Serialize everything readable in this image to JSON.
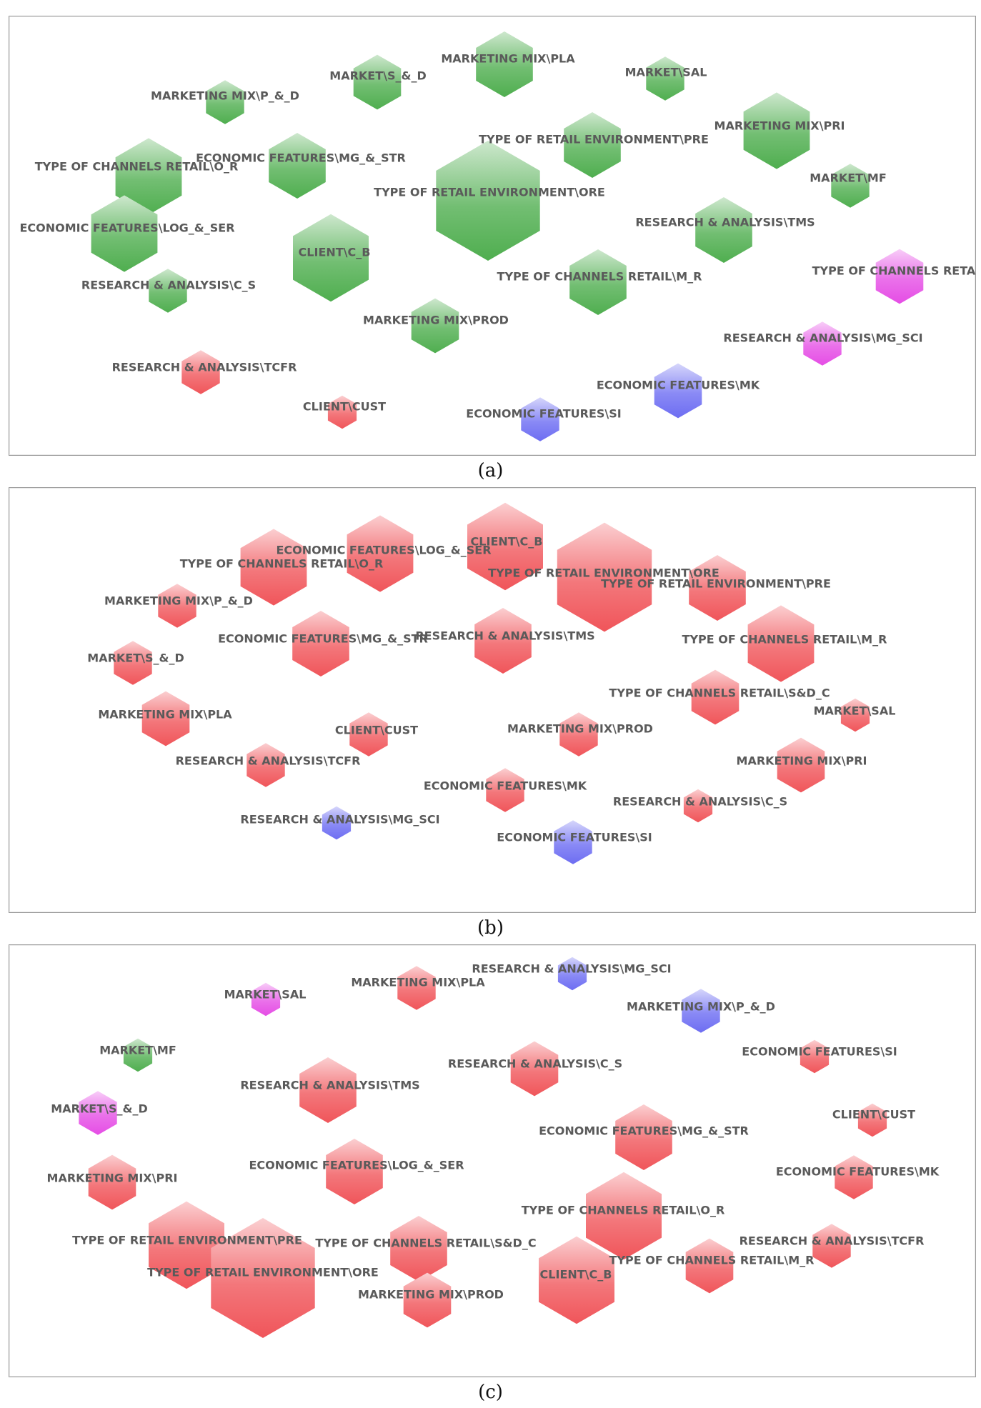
{
  "captions": [
    "(a)",
    "(b)",
    "(c)"
  ],
  "colors": {
    "green": "#4fae4f",
    "red": "#f0555a",
    "blue": "#6d6df2",
    "magenta": "#e54de5",
    "label": "#5a5a5a"
  },
  "panels": [
    {
      "nodes": [
        {
          "label": "MARKETING MIX\\PLA",
          "color": "green",
          "size": 5
        },
        {
          "label": "MARKET\\S_&_D",
          "color": "green",
          "size": 4
        },
        {
          "label": "MARKET\\SAL",
          "color": "green",
          "size": 3
        },
        {
          "label": "MARKETING MIX\\P_&_D",
          "color": "green",
          "size": 3
        },
        {
          "label": "MARKETING MIX\\PRI",
          "color": "green",
          "size": 6
        },
        {
          "label": "TYPE OF RETAIL ENVIRONMENT\\PRE",
          "color": "green",
          "size": 5
        },
        {
          "label": "TYPE OF CHANNELS RETAIL\\O_R",
          "color": "green",
          "size": 6
        },
        {
          "label": "ECONOMIC FEATURES\\MG_&_STR",
          "color": "green",
          "size": 5
        },
        {
          "label": "TYPE OF RETAIL ENVIRONMENT\\ORE",
          "color": "green",
          "size": 10
        },
        {
          "label": "MARKET\\MF",
          "color": "green",
          "size": 3
        },
        {
          "label": "ECONOMIC FEATURES\\LOG_&_SER",
          "color": "green",
          "size": 6
        },
        {
          "label": "RESEARCH & ANALYSIS\\TMS",
          "color": "green",
          "size": 5
        },
        {
          "label": "CLIENT\\C_B",
          "color": "green",
          "size": 7
        },
        {
          "label": "TYPE OF CHANNELS RETAIL",
          "color": "magenta",
          "size": 4
        },
        {
          "label": "RESEARCH & ANALYSIS\\C_S",
          "color": "green",
          "size": 3
        },
        {
          "label": "TYPE OF CHANNELS RETAIL\\M_R",
          "color": "green",
          "size": 5
        },
        {
          "label": "MARKETING MIX\\PROD",
          "color": "green",
          "size": 4
        },
        {
          "label": "RESEARCH & ANALYSIS\\MG_SCI",
          "color": "magenta",
          "size": 3
        },
        {
          "label": "RESEARCH & ANALYSIS\\TCFR",
          "color": "red",
          "size": 3
        },
        {
          "label": "ECONOMIC FEATURES\\MK",
          "color": "blue",
          "size": 4
        },
        {
          "label": "CLIENT\\CUST",
          "color": "red",
          "size": 2
        },
        {
          "label": "ECONOMIC FEATURES\\SI",
          "color": "blue",
          "size": 3
        }
      ]
    },
    {
      "nodes": [
        {
          "label": "TYPE OF CHANNELS RETAIL\\O_R",
          "color": "red",
          "size": 6
        },
        {
          "label": "ECONOMIC FEATURES\\LOG_&_SER",
          "color": "red",
          "size": 6
        },
        {
          "label": "CLIENT\\C_B",
          "color": "red",
          "size": 7
        },
        {
          "label": "TYPE OF RETAIL ENVIRONMENT\\ORE",
          "color": "red",
          "size": 9
        },
        {
          "label": "TYPE OF RETAIL ENVIRONMENT\\PRE",
          "color": "red",
          "size": 5
        },
        {
          "label": "MARKETING MIX\\P_&_D",
          "color": "red",
          "size": 3
        },
        {
          "label": "ECONOMIC FEATURES\\MG_&_STR",
          "color": "red",
          "size": 5
        },
        {
          "label": "RESEARCH & ANALYSIS\\TMS",
          "color": "red",
          "size": 5
        },
        {
          "label": "TYPE OF CHANNELS RETAIL\\M_R",
          "color": "red",
          "size": 6
        },
        {
          "label": "MARKET\\S_&_D",
          "color": "red",
          "size": 3
        },
        {
          "label": "TYPE OF CHANNELS RETAIL\\S&D_C",
          "color": "red",
          "size": 4
        },
        {
          "label": "MARKET\\SAL",
          "color": "red",
          "size": 2
        },
        {
          "label": "MARKETING MIX\\PLA",
          "color": "red",
          "size": 4
        },
        {
          "label": "CLIENT\\CUST",
          "color": "red",
          "size": 3
        },
        {
          "label": "MARKETING MIX\\PROD",
          "color": "red",
          "size": 3
        },
        {
          "label": "RESEARCH & ANALYSIS\\TCFR",
          "color": "red",
          "size": 3
        },
        {
          "label": "MARKETING MIX\\PRI",
          "color": "red",
          "size": 4
        },
        {
          "label": "ECONOMIC FEATURES\\MK",
          "color": "red",
          "size": 3
        },
        {
          "label": "RESEARCH & ANALYSIS\\C_S",
          "color": "red",
          "size": 2
        },
        {
          "label": "RESEARCH & ANALYSIS\\MG_SCI",
          "color": "blue",
          "size": 2
        },
        {
          "label": "ECONOMIC FEATURES\\SI",
          "color": "blue",
          "size": 3
        }
      ]
    },
    {
      "nodes": [
        {
          "label": "RESEARCH & ANALYSIS\\MG_SCI",
          "color": "blue",
          "size": 2
        },
        {
          "label": "MARKETING MIX\\PLA",
          "color": "red",
          "size": 3
        },
        {
          "label": "MARKET\\SAL",
          "color": "magenta",
          "size": 2
        },
        {
          "label": "MARKETING MIX\\P_&_D",
          "color": "blue",
          "size": 3
        },
        {
          "label": "MARKET\\MF",
          "color": "green",
          "size": 2
        },
        {
          "label": "ECONOMIC FEATURES\\SI",
          "color": "red",
          "size": 2
        },
        {
          "label": "RESEARCH & ANALYSIS\\C_S",
          "color": "red",
          "size": 4
        },
        {
          "label": "RESEARCH & ANALYSIS\\TMS",
          "color": "red",
          "size": 5
        },
        {
          "label": "MARKET\\S_&_D",
          "color": "magenta",
          "size": 3
        },
        {
          "label": "CLIENT\\CUST",
          "color": "red",
          "size": 2
        },
        {
          "label": "ECONOMIC FEATURES\\MG_&_STR",
          "color": "red",
          "size": 5
        },
        {
          "label": "ECONOMIC FEATURES\\LOG_&_SER",
          "color": "red",
          "size": 5
        },
        {
          "label": "ECONOMIC FEATURES\\MK",
          "color": "red",
          "size": 3
        },
        {
          "label": "MARKETING MIX\\PRI",
          "color": "red",
          "size": 4
        },
        {
          "label": "TYPE OF CHANNELS RETAIL\\O_R",
          "color": "red",
          "size": 7
        },
        {
          "label": "TYPE OF RETAIL ENVIRONMENT\\PRE",
          "color": "red",
          "size": 7
        },
        {
          "label": "TYPE OF CHANNELS RETAIL\\S&D_C",
          "color": "red",
          "size": 5
        },
        {
          "label": "RESEARCH & ANALYSIS\\TCFR",
          "color": "red",
          "size": 3
        },
        {
          "label": "TYPE OF RETAIL ENVIRONMENT\\ORE",
          "color": "red",
          "size": 10
        },
        {
          "label": "CLIENT\\C_B",
          "color": "red",
          "size": 7
        },
        {
          "label": "TYPE OF CHANNELS RETAIL\\M_R",
          "color": "red",
          "size": 4
        },
        {
          "label": "MARKETING MIX\\PROD",
          "color": "red",
          "size": 4
        }
      ]
    }
  ]
}
